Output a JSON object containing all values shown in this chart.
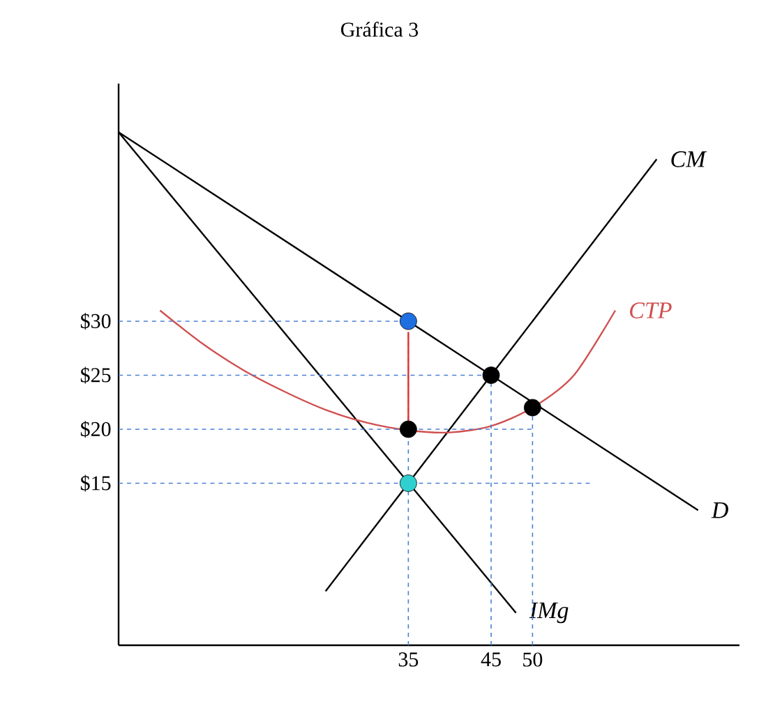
{
  "chart_data": {
    "type": "line",
    "title": "Gráfica 3",
    "xlim": [
      0,
      75
    ],
    "ylim": [
      0,
      52
    ],
    "xticks": [
      35,
      45,
      50
    ],
    "yticks": [
      {
        "value": 15,
        "label": "$15"
      },
      {
        "value": 20,
        "label": "$20"
      },
      {
        "value": 25,
        "label": "$25"
      },
      {
        "value": 30,
        "label": "$30"
      }
    ],
    "series": [
      {
        "name": "D",
        "color": "#000000",
        "x": [
          0,
          70
        ],
        "values": [
          47.5,
          12.5
        ]
      },
      {
        "name": "IMg",
        "color": "#000000",
        "x": [
          0,
          48
        ],
        "values": [
          47.5,
          3
        ]
      },
      {
        "name": "CM",
        "color": "#000000",
        "x": [
          25,
          65
        ],
        "values": [
          5,
          45
        ]
      },
      {
        "name": "CTP",
        "color": "#d05050",
        "x": [
          5,
          10,
          15,
          20,
          25,
          30,
          35,
          40,
          45,
          50,
          55,
          60
        ],
        "values": [
          31,
          28,
          25.5,
          23.5,
          21.8,
          20.6,
          19.9,
          19.7,
          20.3,
          22,
          25,
          31
        ]
      },
      {
        "color": "#4a7fd4",
        "line_style": "dashed",
        "x": [
          0,
          35
        ],
        "values": [
          30,
          30
        ]
      },
      {
        "color": "#4a7fd4",
        "line_style": "dashed",
        "x": [
          0,
          45
        ],
        "values": [
          25,
          25
        ]
      },
      {
        "color": "#4a7fd4",
        "line_style": "dashed",
        "x": [
          0,
          50
        ],
        "values": [
          20,
          20
        ]
      },
      {
        "color": "#4a7fd4",
        "line_style": "dashed",
        "x": [
          0,
          57
        ],
        "values": [
          15,
          15
        ]
      },
      {
        "color": "#4a7fd4",
        "line_style": "dashed",
        "x": [
          35,
          35
        ],
        "values": [
          0,
          30
        ]
      },
      {
        "color": "#4a7fd4",
        "line_style": "dashed",
        "x": [
          45,
          45
        ],
        "values": [
          0,
          25
        ]
      },
      {
        "color": "#4a7fd4",
        "line_style": "dashed",
        "x": [
          50,
          50
        ],
        "values": [
          0,
          22
        ]
      },
      {
        "color": "#e03030",
        "x": [
          35,
          35
        ],
        "values": [
          20,
          29
        ]
      },
      {
        "type": "scatter",
        "marker": "circle",
        "x": [
          35,
          45,
          50,
          35,
          35
        ],
        "values": [
          30,
          25,
          22,
          20,
          15
        ],
        "colors": [
          "#1e6fe0",
          "#000000",
          "#000000",
          "#000000",
          "#30d0d0"
        ]
      }
    ]
  }
}
